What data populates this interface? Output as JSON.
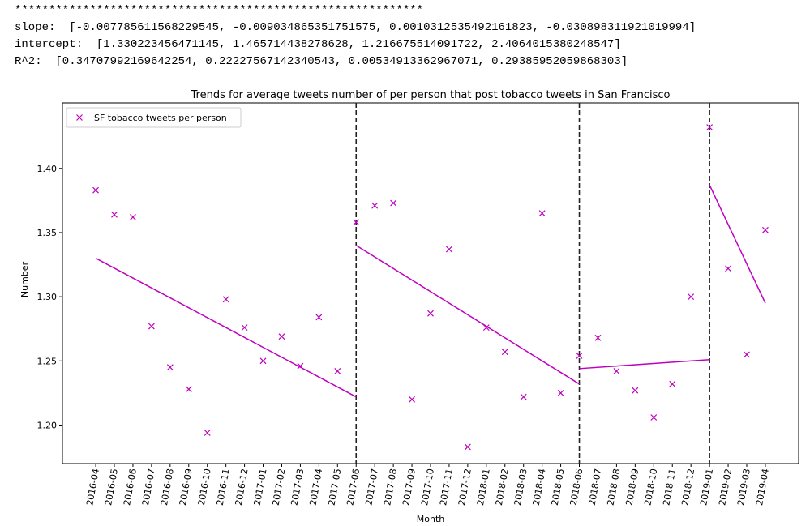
{
  "output_lines": [
    "************************************************************",
    "slope:  [-0.007785611568229545, -0.009034865351751575, 0.0010312535492161823, -0.030898311921019994]",
    "intercept:  [1.330223456471145, 1.465714438278628, 1.216675514091722, 2.4064015380248547]",
    "R^2:  [0.34707992169642254, 0.22227567142340543, 0.00534913362967071, 0.29385952059868303]"
  ],
  "chart_data": {
    "type": "scatter",
    "title": "Trends for average tweets number of per person that post tobacco tweets in San Francisco",
    "x_label": "Month",
    "y_label": "Number",
    "categories": [
      "2016-04",
      "2016-05",
      "2016-06",
      "2016-07",
      "2016-08",
      "2016-09",
      "2016-10",
      "2016-11",
      "2016-12",
      "2017-01",
      "2017-02",
      "2017-03",
      "2017-04",
      "2017-05",
      "2017-06",
      "2017-07",
      "2017-08",
      "2017-09",
      "2017-10",
      "2017-11",
      "2017-12",
      "2018-01",
      "2018-02",
      "2018-03",
      "2018-04",
      "2018-05",
      "2018-06",
      "2018-07",
      "2018-08",
      "2018-09",
      "2018-10",
      "2018-11",
      "2018-12",
      "2019-01",
      "2019-02",
      "2019-03",
      "2019-04"
    ],
    "series": [
      {
        "name": "SF tobacco tweets per person",
        "color": "#bf00bf",
        "marker": "x",
        "values": [
          1.383,
          1.364,
          1.362,
          1.277,
          1.245,
          1.228,
          1.194,
          1.298,
          1.276,
          1.25,
          1.269,
          1.246,
          1.284,
          1.242,
          1.358,
          1.371,
          1.373,
          1.22,
          1.287,
          1.337,
          1.183,
          1.276,
          1.257,
          1.222,
          1.365,
          1.225,
          1.254,
          1.268,
          1.242,
          1.227,
          1.206,
          1.232,
          1.3,
          1.432,
          1.322,
          1.255,
          1.352
        ]
      }
    ],
    "trend_lines": [
      {
        "color": "#bf00bf",
        "x": [
          "2016-04",
          "2017-06"
        ],
        "values": [
          1.33,
          1.222
        ]
      },
      {
        "color": "#bf00bf",
        "x": [
          "2017-06",
          "2018-06"
        ],
        "values": [
          1.34,
          1.232
        ]
      },
      {
        "color": "#bf00bf",
        "x": [
          "2018-06",
          "2019-01"
        ],
        "values": [
          1.244,
          1.251
        ]
      },
      {
        "color": "#bf00bf",
        "x": [
          "2019-01",
          "2019-04"
        ],
        "values": [
          1.387,
          1.295
        ]
      }
    ],
    "vlines": [
      "2017-06",
      "2018-06",
      "2019-01"
    ],
    "ylim": [
      1.17,
      1.451
    ],
    "yticks": [
      {
        "value": 1.2,
        "label": "1.20"
      },
      {
        "value": 1.25,
        "label": "1.25"
      },
      {
        "value": 1.3,
        "label": "1.30"
      },
      {
        "value": 1.35,
        "label": "1.35"
      },
      {
        "value": 1.4,
        "label": "1.40"
      }
    ],
    "legend": "upper left",
    "grid": false
  }
}
